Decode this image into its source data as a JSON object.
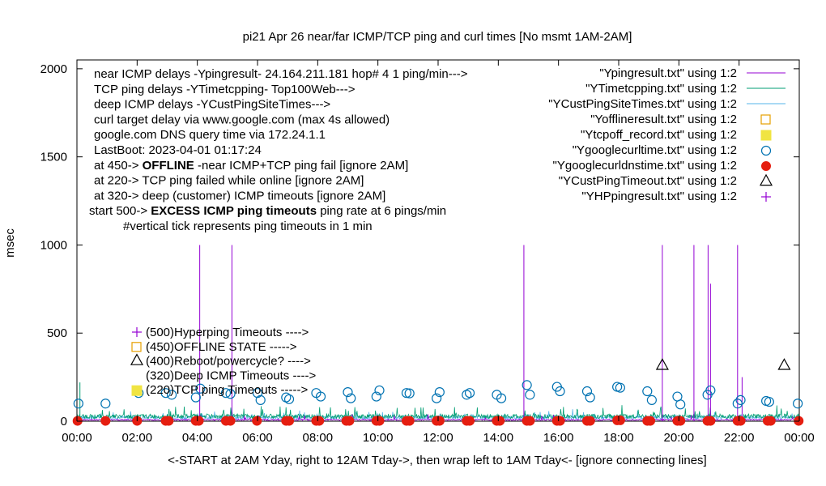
{
  "chart_data": {
    "type": "line",
    "title": "pi21 Apr 26  near/far ICMP/TCP ping and curl times [No msmt 1AM-2AM]",
    "xlabel": "<-START at 2AM Yday, right to 12AM Tday->, then wrap left to 1AM Tday<- [ignore connecting lines]",
    "ylabel": "msec",
    "xlim": [
      0,
      24
    ],
    "ylim": [
      0,
      2050
    ],
    "xticks": [
      0,
      2,
      4,
      6,
      8,
      10,
      12,
      14,
      16,
      18,
      20,
      22,
      24
    ],
    "xtick_labels": [
      "00:00",
      "02:00",
      "04:00",
      "06:00",
      "08:00",
      "10:00",
      "12:00",
      "14:00",
      "16:00",
      "18:00",
      "20:00",
      "22:00",
      "00:00"
    ],
    "yticks": [
      0,
      500,
      1000,
      1500,
      2000
    ],
    "ytick_labels": [
      "0",
      "500",
      "1000",
      "1500",
      "2000"
    ],
    "grid": false,
    "legend_position": "top-right",
    "info_lines": [
      "near ICMP delays -Ypingresult- 24.164.211.181 hop# 4 1 ping/min--->",
      "TCP ping delays -YTimetcpping- Top100Web--->",
      "deep ICMP delays -YCustPingSiteTimes--->",
      "curl target delay via www.google.com (max 4s allowed)",
      "google.com DNS query time via 172.24.1.1",
      "LastBoot: 2023-04-01 01:17:24"
    ],
    "status_lines": [
      {
        "pre": "at 450-> ",
        "bold": "OFFLINE",
        "post": " -near ICMP+TCP ping fail [ignore 2AM]"
      },
      {
        "pre": "at 220-> TCP ping failed while online [ignore 2AM]",
        "bold": "",
        "post": ""
      },
      {
        "pre": "at 320-> deep (customer) ICMP timeouts [ignore 2AM]",
        "bold": "",
        "post": ""
      },
      {
        "pre": "start 500-> ",
        "bold": "EXCESS ICMP ping timeouts",
        "post": " ping rate at 6 pings/min"
      }
    ],
    "tick_note": "#vertical tick represents ping timeouts in 1 min",
    "marker_labels": [
      {
        "value": 500,
        "text": "(500)Hyperping Timeouts ---->"
      },
      {
        "value": 450,
        "text": "(450)OFFLINE STATE ----->"
      },
      {
        "value": 400,
        "text": "(400)Reboot/powercycle? ---->"
      },
      {
        "value": 320,
        "text": "(320)Deep ICMP Timeouts ---->"
      },
      {
        "value": 220,
        "text": "(220)TCP ping Timeouts ----->"
      }
    ],
    "series": [
      {
        "name": "\"Ypingresult.txt\" using 1:2",
        "color": "#9400d3",
        "style": "line"
      },
      {
        "name": "\"YTimetcpping.txt\" using 1:2",
        "color": "#009e73",
        "style": "line"
      },
      {
        "name": "\"YCustPingSiteTimes.txt\" using 1:2",
        "color": "#56b4e9",
        "style": "line"
      },
      {
        "name": "\"Yofflineresult.txt\" using 1:2",
        "color": "#e69f00",
        "style": "open-square"
      },
      {
        "name": "\"Ytcpoff_record.txt\" using 1:2",
        "color": "#f0e442",
        "style": "filled-square"
      },
      {
        "name": "\"Ygooglecurltime.txt\" using 1:2",
        "color": "#0072b2",
        "style": "open-circle"
      },
      {
        "name": "\"Ygooglecurldnstime.txt\" using 1:2",
        "color": "#e51e10",
        "style": "filled-circle"
      },
      {
        "name": "\"YCustPingTimeout.txt\" using 1:2",
        "color": "#000000",
        "style": "open-triangle"
      },
      {
        "name": "\"YHPpingresult.txt\" using 1:2",
        "color": "#9400d3",
        "style": "plus"
      }
    ],
    "ping_spikes": [
      {
        "x": 4.08,
        "y": 1000
      },
      {
        "x": 5.15,
        "y": 1000
      },
      {
        "x": 14.85,
        "y": 1000
      },
      {
        "x": 19.45,
        "y": 1000
      },
      {
        "x": 20.5,
        "y": 1000
      },
      {
        "x": 20.97,
        "y": 1000
      },
      {
        "x": 21.05,
        "y": 780
      },
      {
        "x": 21.95,
        "y": 1000
      },
      {
        "x": 22.1,
        "y": 250
      }
    ],
    "deep_timeouts": [
      {
        "x": 19.45,
        "y": 320
      },
      {
        "x": 23.5,
        "y": 320
      }
    ],
    "curl_times": [
      {
        "x": 0.05,
        "y": 100
      },
      {
        "x": 0.95,
        "y": 100
      },
      {
        "x": 2.05,
        "y": 160
      },
      {
        "x": 2.95,
        "y": 160
      },
      {
        "x": 3.15,
        "y": 150
      },
      {
        "x": 3.95,
        "y": 135
      },
      {
        "x": 4.1,
        "y": 185
      },
      {
        "x": 4.95,
        "y": 160
      },
      {
        "x": 5.1,
        "y": 155
      },
      {
        "x": 6.0,
        "y": 160
      },
      {
        "x": 6.1,
        "y": 120
      },
      {
        "x": 6.95,
        "y": 135
      },
      {
        "x": 7.05,
        "y": 125
      },
      {
        "x": 7.95,
        "y": 160
      },
      {
        "x": 8.1,
        "y": 140
      },
      {
        "x": 9.0,
        "y": 165
      },
      {
        "x": 9.1,
        "y": 130
      },
      {
        "x": 9.95,
        "y": 140
      },
      {
        "x": 10.05,
        "y": 175
      },
      {
        "x": 10.95,
        "y": 160
      },
      {
        "x": 11.05,
        "y": 158
      },
      {
        "x": 11.95,
        "y": 130
      },
      {
        "x": 12.05,
        "y": 165
      },
      {
        "x": 12.95,
        "y": 150
      },
      {
        "x": 13.05,
        "y": 160
      },
      {
        "x": 13.95,
        "y": 150
      },
      {
        "x": 14.1,
        "y": 130
      },
      {
        "x": 14.95,
        "y": 205
      },
      {
        "x": 15.05,
        "y": 150
      },
      {
        "x": 15.95,
        "y": 195
      },
      {
        "x": 16.05,
        "y": 170
      },
      {
        "x": 16.95,
        "y": 170
      },
      {
        "x": 17.05,
        "y": 135
      },
      {
        "x": 17.95,
        "y": 195
      },
      {
        "x": 18.05,
        "y": 190
      },
      {
        "x": 18.95,
        "y": 170
      },
      {
        "x": 19.1,
        "y": 120
      },
      {
        "x": 19.95,
        "y": 140
      },
      {
        "x": 20.05,
        "y": 95
      },
      {
        "x": 20.95,
        "y": 150
      },
      {
        "x": 21.05,
        "y": 175
      },
      {
        "x": 21.95,
        "y": 100
      },
      {
        "x": 22.05,
        "y": 120
      },
      {
        "x": 22.9,
        "y": 115
      },
      {
        "x": 23.0,
        "y": 110
      },
      {
        "x": 23.95,
        "y": 100
      }
    ],
    "dns_times": [
      {
        "x": 0.02,
        "y": 2
      },
      {
        "x": 0.95,
        "y": 2
      },
      {
        "x": 2.0,
        "y": 2
      },
      {
        "x": 2.95,
        "y": 2
      },
      {
        "x": 3.05,
        "y": 2
      },
      {
        "x": 3.95,
        "y": 2
      },
      {
        "x": 4.05,
        "y": 2
      },
      {
        "x": 4.95,
        "y": 2
      },
      {
        "x": 5.1,
        "y": 2
      },
      {
        "x": 5.98,
        "y": 2
      },
      {
        "x": 6.95,
        "y": 2
      },
      {
        "x": 7.05,
        "y": 2
      },
      {
        "x": 7.95,
        "y": 2
      },
      {
        "x": 8.05,
        "y": 2
      },
      {
        "x": 8.95,
        "y": 2
      },
      {
        "x": 9.05,
        "y": 2
      },
      {
        "x": 9.95,
        "y": 2
      },
      {
        "x": 10.05,
        "y": 2
      },
      {
        "x": 10.95,
        "y": 2
      },
      {
        "x": 11.05,
        "y": 2
      },
      {
        "x": 11.95,
        "y": 2
      },
      {
        "x": 12.05,
        "y": 2
      },
      {
        "x": 12.95,
        "y": 2
      },
      {
        "x": 13.05,
        "y": 2
      },
      {
        "x": 13.95,
        "y": 2
      },
      {
        "x": 14.05,
        "y": 2
      },
      {
        "x": 14.95,
        "y": 2
      },
      {
        "x": 15.05,
        "y": 2
      },
      {
        "x": 15.95,
        "y": 2
      },
      {
        "x": 16.05,
        "y": 2
      },
      {
        "x": 16.95,
        "y": 2
      },
      {
        "x": 17.05,
        "y": 2
      },
      {
        "x": 17.95,
        "y": 5
      },
      {
        "x": 18.05,
        "y": 5
      },
      {
        "x": 18.95,
        "y": 2
      },
      {
        "x": 19.05,
        "y": 2
      },
      {
        "x": 19.95,
        "y": 2
      },
      {
        "x": 20.05,
        "y": 2
      },
      {
        "x": 20.95,
        "y": 2
      },
      {
        "x": 21.05,
        "y": 2
      },
      {
        "x": 21.95,
        "y": 2
      },
      {
        "x": 22.05,
        "y": 2
      },
      {
        "x": 22.95,
        "y": 2
      },
      {
        "x": 23.05,
        "y": 2
      },
      {
        "x": 23.98,
        "y": 2
      }
    ]
  }
}
